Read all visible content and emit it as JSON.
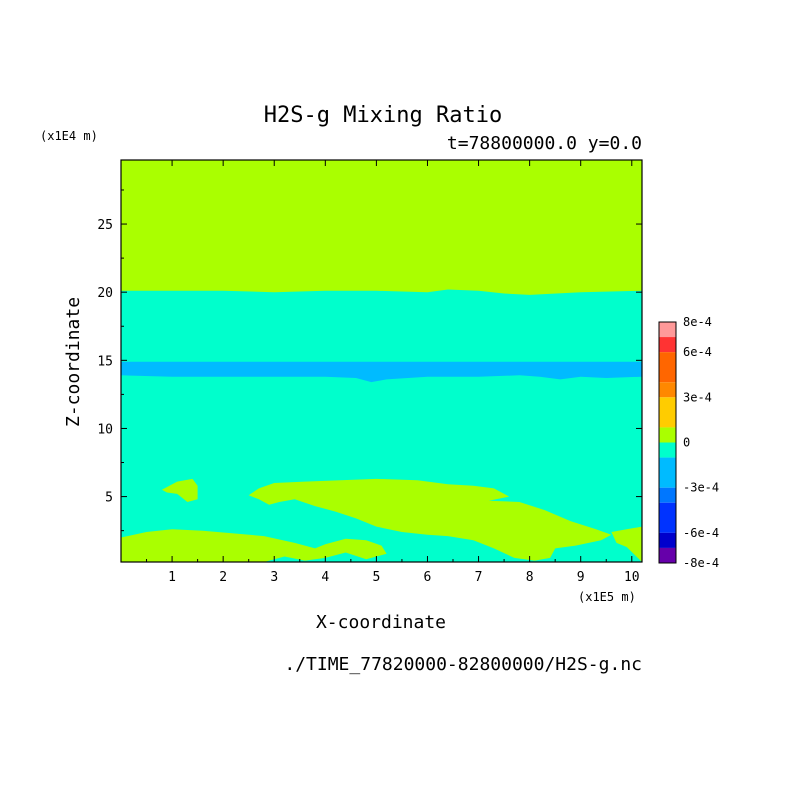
{
  "chart_data": {
    "type": "heatmap",
    "title": "H2S-g Mixing Ratio",
    "subtitle": "t=78800000.0 y=0.0",
    "xlabel": "X-coordinate",
    "ylabel": "Z-coordinate",
    "x_unit": "(x1E5 m)",
    "y_unit": "(x1E4 m)",
    "xlim": [
      0,
      10.2
    ],
    "ylim": [
      0.2,
      29.7
    ],
    "x_ticks": [
      1,
      2,
      3,
      4,
      5,
      6,
      7,
      8,
      9,
      10
    ],
    "y_ticks": [
      5,
      10,
      15,
      20,
      25
    ],
    "footer": "./TIME_77820000-82800000/H2S-g.nc",
    "colorbar": {
      "labels": [
        {
          "value": 0.0008,
          "text": "8e-4"
        },
        {
          "value": 0.0006,
          "text": "6e-4"
        },
        {
          "value": 0.0003,
          "text": "3e-4"
        },
        {
          "value": 0,
          "text": "0"
        },
        {
          "value": -0.0003,
          "text": "-3e-4"
        },
        {
          "value": -0.0006,
          "text": "-6e-4"
        },
        {
          "value": -0.0008,
          "text": "-8e-4"
        }
      ],
      "bins": [
        {
          "from": 0.0007,
          "to": 0.0008,
          "color": "#ff9999"
        },
        {
          "from": 0.0006,
          "to": 0.0007,
          "color": "#ff3333"
        },
        {
          "from": 0.0004,
          "to": 0.0006,
          "color": "#ff6600"
        },
        {
          "from": 0.0003,
          "to": 0.0004,
          "color": "#ff8800"
        },
        {
          "from": 0.0001,
          "to": 0.0003,
          "color": "#ffcc00"
        },
        {
          "from": 0.0,
          "to": 0.0001,
          "color": "#aaff00"
        },
        {
          "from": -0.0001,
          "to": 0.0,
          "color": "#00ffcc"
        },
        {
          "from": -0.0003,
          "to": -0.0001,
          "color": "#00bbff"
        },
        {
          "from": -0.0004,
          "to": -0.0003,
          "color": "#0077ff"
        },
        {
          "from": -0.0006,
          "to": -0.0004,
          "color": "#0033ff"
        },
        {
          "from": -0.0007,
          "to": -0.0006,
          "color": "#0000cc"
        },
        {
          "from": -0.0008,
          "to": -0.0007,
          "color": "#6600aa"
        }
      ]
    },
    "colors": {
      "positive_small": "#aaff00",
      "negative_small": "#00ffcc",
      "negative_mid": "#00bbff"
    },
    "regions": [
      {
        "name": "upper-positive-layer",
        "color": "#aaff00",
        "polygon": [
          [
            0,
            20.1
          ],
          [
            1,
            20.1
          ],
          [
            2,
            20.1
          ],
          [
            3,
            20.0
          ],
          [
            4,
            20.1
          ],
          [
            5,
            20.1
          ],
          [
            6,
            20.0
          ],
          [
            6.4,
            20.2
          ],
          [
            7,
            20.1
          ],
          [
            7.5,
            19.9
          ],
          [
            8,
            19.8
          ],
          [
            9,
            20.0
          ],
          [
            10.2,
            20.1
          ],
          [
            10.2,
            29.7
          ],
          [
            0,
            29.7
          ]
        ]
      },
      {
        "name": "mid-negative-band",
        "color": "#00bbff",
        "polygon": [
          [
            0,
            14.9
          ],
          [
            2,
            14.9
          ],
          [
            4,
            14.9
          ],
          [
            6,
            14.9
          ],
          [
            8,
            14.9
          ],
          [
            10.2,
            14.9
          ],
          [
            10.2,
            13.8
          ],
          [
            9.5,
            13.7
          ],
          [
            9,
            13.8
          ],
          [
            8.6,
            13.6
          ],
          [
            8.2,
            13.8
          ],
          [
            7.8,
            13.9
          ],
          [
            7,
            13.8
          ],
          [
            6,
            13.8
          ],
          [
            5.2,
            13.6
          ],
          [
            4.9,
            13.4
          ],
          [
            4.6,
            13.7
          ],
          [
            4,
            13.8
          ],
          [
            3,
            13.8
          ],
          [
            2,
            13.8
          ],
          [
            1,
            13.8
          ],
          [
            0,
            13.9
          ]
        ]
      },
      {
        "name": "left-bottom-positive-patch",
        "color": "#aaff00",
        "polygon": [
          [
            0,
            0.2
          ],
          [
            0,
            2.0
          ],
          [
            0.5,
            2.4
          ],
          [
            1,
            2.6
          ],
          [
            1.6,
            2.5
          ],
          [
            2.2,
            2.3
          ],
          [
            2.8,
            2.1
          ],
          [
            3.4,
            1.6
          ],
          [
            3.8,
            1.2
          ],
          [
            4.0,
            1.5
          ],
          [
            4.4,
            1.9
          ],
          [
            4.8,
            1.8
          ],
          [
            5.1,
            1.4
          ],
          [
            5.2,
            0.8
          ],
          [
            4.8,
            0.4
          ],
          [
            4.4,
            0.9
          ],
          [
            4.0,
            0.5
          ],
          [
            3.6,
            0.3
          ],
          [
            3.2,
            0.6
          ],
          [
            2.8,
            0.2
          ]
        ]
      },
      {
        "name": "central-positive-plume",
        "color": "#aaff00",
        "polygon": [
          [
            2.5,
            5.1
          ],
          [
            2.7,
            5.6
          ],
          [
            3.0,
            6.0
          ],
          [
            3.6,
            6.1
          ],
          [
            4.3,
            6.2
          ],
          [
            5.0,
            6.3
          ],
          [
            5.8,
            6.2
          ],
          [
            6.4,
            5.9
          ],
          [
            6.9,
            5.8
          ],
          [
            7.3,
            5.6
          ],
          [
            7.6,
            5.0
          ],
          [
            7.2,
            4.7
          ],
          [
            7.8,
            4.6
          ],
          [
            8.3,
            4.0
          ],
          [
            8.8,
            3.2
          ],
          [
            9.3,
            2.6
          ],
          [
            9.6,
            2.2
          ],
          [
            9.4,
            1.8
          ],
          [
            8.9,
            1.4
          ],
          [
            8.5,
            1.2
          ],
          [
            8.4,
            0.5
          ],
          [
            8.1,
            0.3
          ],
          [
            7.7,
            0.5
          ],
          [
            7.3,
            1.2
          ],
          [
            6.9,
            1.8
          ],
          [
            6.4,
            2.1
          ],
          [
            6.0,
            2.2
          ],
          [
            5.5,
            2.4
          ],
          [
            5.0,
            2.8
          ],
          [
            4.6,
            3.4
          ],
          [
            4.2,
            3.9
          ],
          [
            3.8,
            4.3
          ],
          [
            3.4,
            4.8
          ],
          [
            3.1,
            4.6
          ],
          [
            2.9,
            4.4
          ],
          [
            2.7,
            4.8
          ]
        ]
      },
      {
        "name": "small-left-positive-patch",
        "color": "#aaff00",
        "polygon": [
          [
            0.8,
            5.5
          ],
          [
            1.1,
            6.1
          ],
          [
            1.4,
            6.3
          ],
          [
            1.5,
            5.8
          ],
          [
            1.5,
            4.8
          ],
          [
            1.3,
            4.6
          ],
          [
            1.1,
            5.2
          ],
          [
            0.9,
            5.3
          ]
        ]
      },
      {
        "name": "right-edge-positive-patch",
        "color": "#aaff00",
        "polygon": [
          [
            9.6,
            2.4
          ],
          [
            9.9,
            2.6
          ],
          [
            10.2,
            2.8
          ],
          [
            10.2,
            0.2
          ],
          [
            9.9,
            1.3
          ],
          [
            9.7,
            1.6
          ]
        ]
      }
    ]
  }
}
